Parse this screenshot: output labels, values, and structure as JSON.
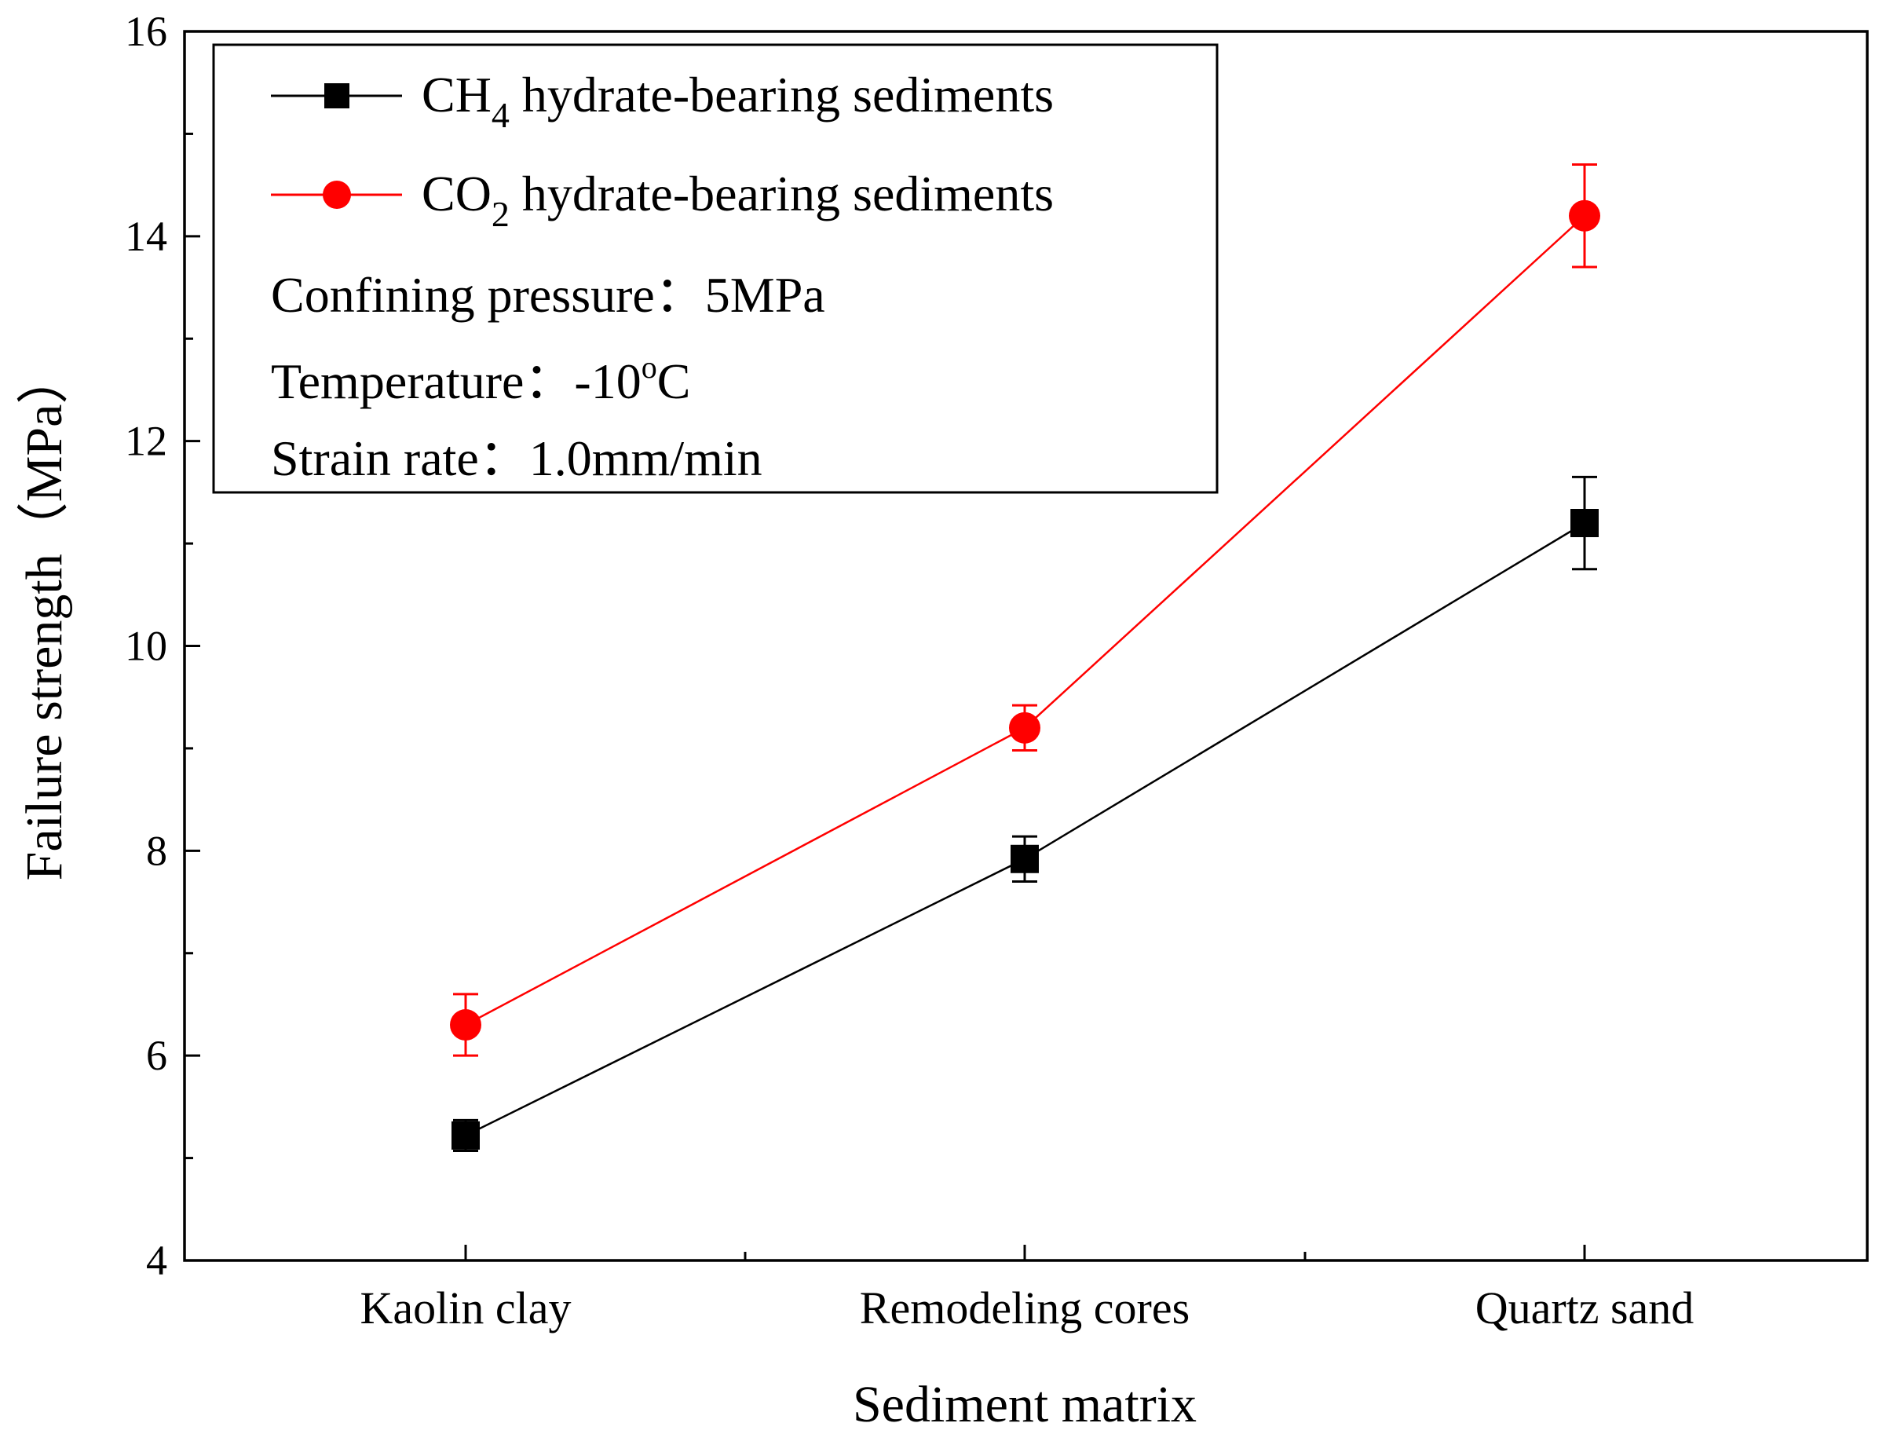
{
  "chart_data": {
    "type": "line",
    "xlabel": "Sediment matrix",
    "ylabel": "Failure strength（MPa）",
    "categories": [
      "Kaolin clay",
      "Remodeling cores",
      "Quartz sand"
    ],
    "ylim": [
      4,
      16
    ],
    "yticks": [
      "4",
      "6",
      "8",
      "10",
      "12",
      "14",
      "16"
    ],
    "grid": false,
    "legend_position": "top-left",
    "series": [
      {
        "name_main": "CH",
        "name_sub": "4",
        "name_rest": " hydrate-bearing sediments",
        "color": "#000000",
        "marker": "square",
        "values": [
          5.22,
          7.92,
          11.2
        ],
        "errors": [
          0.15,
          0.22,
          0.45
        ]
      },
      {
        "name_main": "CO",
        "name_sub": "2",
        "name_rest": " hydrate-bearing sediments",
        "color": "#ff0000",
        "marker": "circle",
        "values": [
          6.3,
          9.2,
          14.2
        ],
        "errors": [
          0.3,
          0.22,
          0.5
        ]
      }
    ],
    "annotations": {
      "confining_pressure": "Confining pressure：5MPa",
      "temperature_pre": "Temperature：-10",
      "temperature_sup": "o",
      "temperature_post": "C",
      "strain_rate": "Strain rate：1.0mm/min"
    }
  }
}
